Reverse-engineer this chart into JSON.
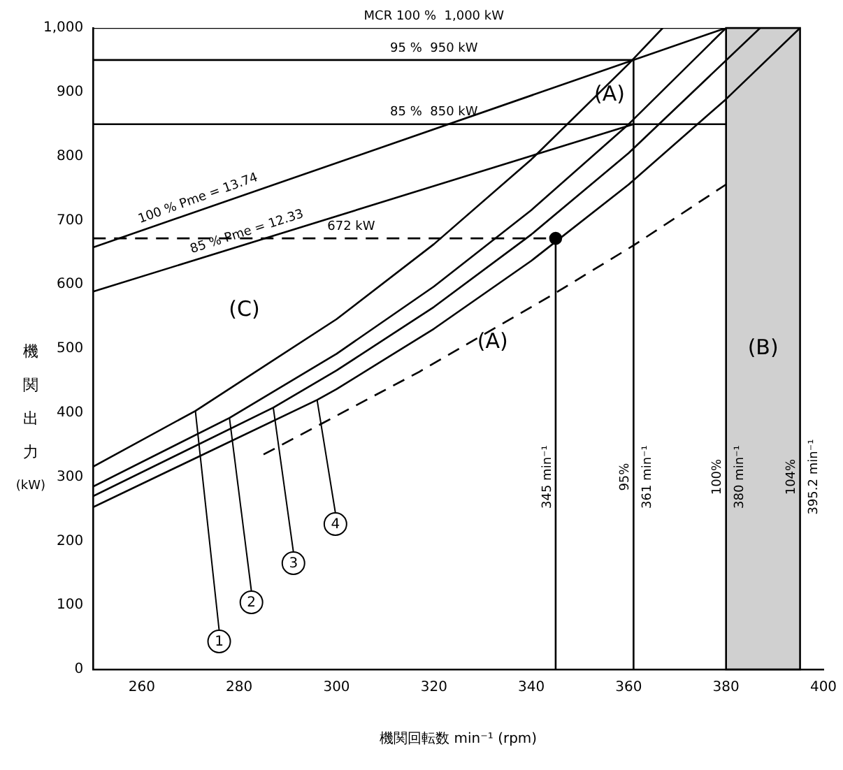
{
  "chart_data": {
    "type": "line",
    "xlabel": "機関回転数 min⁻¹ (rpm)",
    "ylabel": "機関出力 (kW)",
    "xlim": [
      250,
      400
    ],
    "xticks": [
      260,
      280,
      300,
      320,
      340,
      360,
      380,
      400
    ],
    "ylim": [
      0,
      1000
    ],
    "yticks": [
      0,
      100,
      200,
      300,
      400,
      500,
      600,
      700,
      800,
      900,
      {
        "value": 1000,
        "label": "1,000"
      }
    ],
    "grid": false,
    "legend": false,
    "marker": "none",
    "line_style": "solid",
    "series": [
      {
        "name": "1",
        "color": "#000000",
        "x": [
          250,
          271,
          300,
          320,
          340,
          360,
          367
        ],
        "values": [
          316,
          403,
          546,
          663,
          795,
          944,
          1000
        ]
      },
      {
        "name": "2",
        "color": "#000000",
        "x": [
          250,
          278,
          300,
          320,
          340,
          360,
          380
        ],
        "values": [
          285,
          392,
          492,
          597,
          716,
          850,
          1000
        ]
      },
      {
        "name": "3",
        "color": "#000000",
        "x": [
          250,
          287,
          300,
          320,
          340,
          360,
          387
        ],
        "values": [
          270,
          408,
          466,
          565,
          678,
          805,
          1000
        ]
      },
      {
        "name": "4",
        "color": "#000000",
        "x": [
          250,
          296,
          300,
          320,
          340,
          360,
          380,
          395.2
        ],
        "values": [
          253,
          420,
          437,
          531,
          637,
          756,
          889,
          1000
        ]
      },
      {
        "color": "#000000",
        "line_style": "dashed",
        "x": [
          285,
          317,
          345,
          361,
          380
        ],
        "values": [
          335,
          464,
          587,
          661,
          756
        ]
      },
      {
        "color": "#000000",
        "x": [
          250,
          380
        ],
        "values": [
          658,
          1000
        ]
      },
      {
        "color": "#000000",
        "x": [
          250,
          361
        ],
        "values": [
          589,
          850
        ]
      },
      {
        "color": "#000000",
        "x": [
          250,
          395.2
        ],
        "values": [
          1000,
          1000
        ]
      },
      {
        "color": "#000000",
        "x": [
          250,
          361
        ],
        "values": [
          950,
          950
        ]
      },
      {
        "color": "#000000",
        "x": [
          250,
          380
        ],
        "values": [
          850,
          850
        ]
      },
      {
        "color": "#000000",
        "line_style": "dashed",
        "x": [
          250,
          345
        ],
        "values": [
          672,
          672
        ]
      },
      {
        "color": "#000000",
        "x": [
          345,
          345
        ],
        "values": [
          0,
          672
        ]
      },
      {
        "color": "#000000",
        "x": [
          361,
          361
        ],
        "values": [
          0,
          950
        ]
      },
      {
        "type": "scatter",
        "marker": "circle",
        "color": "#000000",
        "x": [
          345
        ],
        "values": [
          672
        ]
      }
    ],
    "bands": [
      {
        "axis": "x",
        "from": 380,
        "to": 395.2,
        "label": "(B)",
        "color": "#d0d0d0"
      }
    ],
    "annotations": [
      {
        "text": "MCR 100 %  1,000 kW",
        "x": 320,
        "y": 1000
      },
      {
        "text": "95 %  950 kW",
        "x": 320,
        "y": 950
      },
      {
        "text": "85 %  850 kW",
        "x": 320,
        "y": 850
      },
      {
        "text": "100 % Pme = 13.74",
        "x": 272,
        "y": 716
      },
      {
        "text": "85 % Pme = 12.33",
        "x": 282,
        "y": 664
      },
      {
        "text": "672 kW",
        "x": 303,
        "y": 672
      },
      "(C)",
      "(A)",
      "(A)",
      {
        "text": "345 min⁻¹",
        "x": 345,
        "y": 300
      },
      {
        "text": "95%",
        "x": 361,
        "y": 300
      },
      {
        "text": "361 min⁻¹",
        "x": 361,
        "y": 300
      },
      {
        "text": "100%",
        "x": 380,
        "y": 300
      },
      {
        "text": "380 min⁻¹",
        "x": 380,
        "y": 300
      },
      {
        "text": "104%",
        "x": 395.2,
        "y": 300
      },
      {
        "text": "395.2 min⁻¹",
        "x": 395.2,
        "y": 300
      }
    ]
  }
}
